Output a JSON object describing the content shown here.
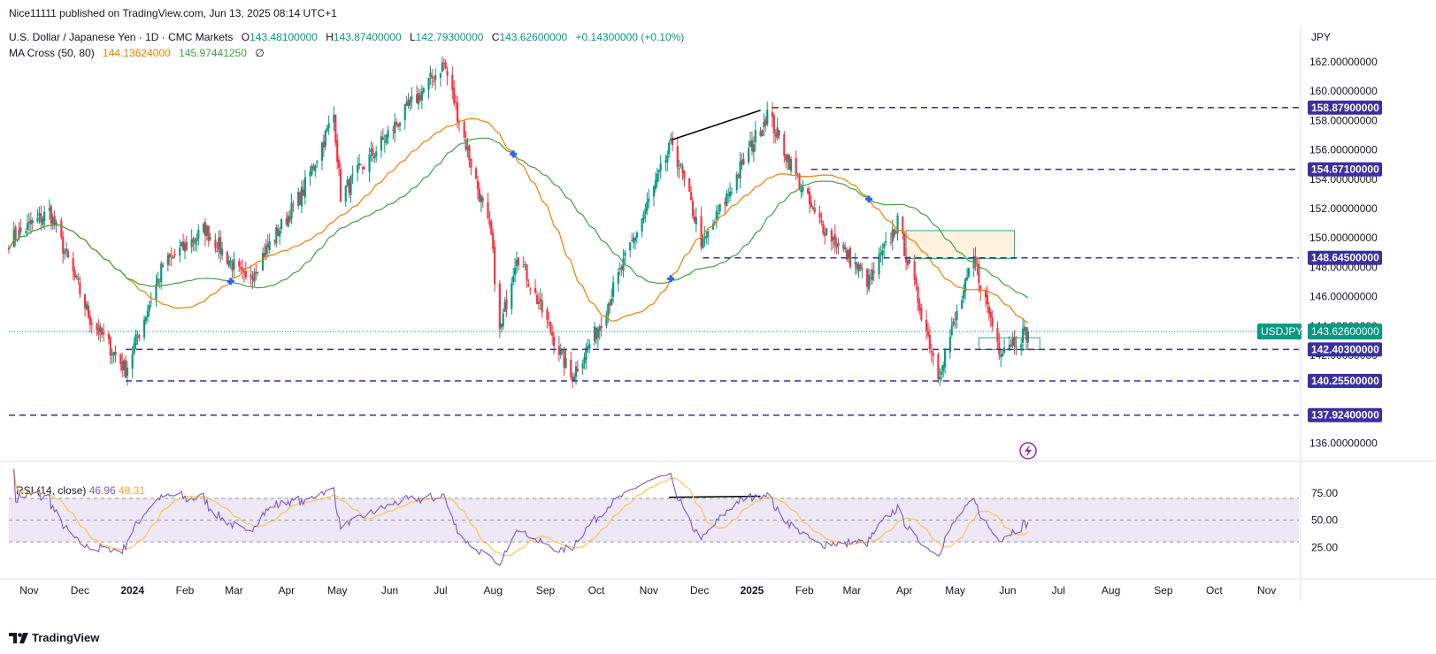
{
  "header": {
    "published_by": "Nice11111 published on TradingView.com, Jun 13, 2025 08:14 UTC+1"
  },
  "legend": {
    "symbol": "U.S. Dollar / Japanese Yen · 1D · CMC Markets",
    "open_label": "O",
    "open": "143.48100000",
    "high_label": "H",
    "high": "143.87400000",
    "low_label": "L",
    "low": "142.79300000",
    "close_label": "C",
    "close": "143.62600000",
    "change": "+0.14300000 (+0.10%)",
    "ma_name": "MA Cross (50, 80)",
    "ma50": "144.13624000",
    "ma80": "145.97441250",
    "ma_extra": "∅"
  },
  "rsi_legend": {
    "name": "RSI (14, close)",
    "value": "46.96",
    "ma": "48.31"
  },
  "axis": {
    "currency": "JPY",
    "ticks": [
      "162.00000000",
      "160.00000000",
      "158.00000000",
      "156.00000000",
      "154.00000000",
      "152.00000000",
      "150.00000000",
      "148.00000000",
      "146.00000000",
      "144.00000000",
      "142.00000000",
      "136.00000000"
    ],
    "rsi_ticks": [
      "75.00",
      "50.00",
      "25.00"
    ]
  },
  "levels": [
    "158.87900000",
    "154.67100000",
    "148.64500000",
    "142.40300000",
    "140.25500000",
    "137.92400000"
  ],
  "price_tag": {
    "symbol": "USDJPY",
    "price": "143.62600000"
  },
  "time_axis": [
    "Nov",
    "Dec",
    "2024",
    "Feb",
    "Mar",
    "Apr",
    "May",
    "Jun",
    "Jul",
    "Aug",
    "Sep",
    "Oct",
    "Nov",
    "Dec",
    "2025",
    "Feb",
    "Mar",
    "Apr",
    "May",
    "Jun",
    "Jul",
    "Aug",
    "Sep",
    "Oct",
    "Nov"
  ],
  "footer": {
    "brand": "TradingView"
  },
  "colors": {
    "up": "#089981",
    "down": "#f23645",
    "ma50": "#f57c00",
    "ma80": "#43a047",
    "level": "#3c2fa0",
    "rsi": "#7e57c2",
    "rsi_ma": "#f9c74f",
    "rsi_band": "#ede7f6",
    "cross": "#2962ff"
  },
  "chart_data": [
    {
      "type": "candlestick",
      "title": "U.S. Dollar / Japanese Yen · 1D · CMC Markets",
      "ylabel": "JPY",
      "ylim": [
        135.0,
        163.0
      ],
      "x_range": [
        "2023-10-20",
        "2025-11-20"
      ],
      "key_points": [
        {
          "date": "2023-10-20",
          "close": 149.8
        },
        {
          "date": "2023-11-13",
          "close": 151.8
        },
        {
          "date": "2023-12-07",
          "close": 144.5
        },
        {
          "date": "2023-12-28",
          "close": 141.0
        },
        {
          "date": "2024-01-19",
          "close": 148.1
        },
        {
          "date": "2024-02-13",
          "close": 150.6
        },
        {
          "date": "2024-03-08",
          "close": 147.0
        },
        {
          "date": "2024-04-10",
          "close": 153.0
        },
        {
          "date": "2024-04-29",
          "close": 158.4
        },
        {
          "date": "2024-05-03",
          "close": 152.9
        },
        {
          "date": "2024-06-03",
          "close": 157.5
        },
        {
          "date": "2024-07-03",
          "close": 161.9
        },
        {
          "date": "2024-07-31",
          "close": 150.0
        },
        {
          "date": "2024-08-05",
          "close": 143.5
        },
        {
          "date": "2024-08-15",
          "close": 149.0
        },
        {
          "date": "2024-09-16",
          "close": 140.5
        },
        {
          "date": "2024-10-01",
          "close": 143.6
        },
        {
          "date": "2024-11-15",
          "close": 156.5
        },
        {
          "date": "2024-12-03",
          "close": 149.5
        },
        {
          "date": "2025-01-10",
          "close": 158.5
        },
        {
          "date": "2025-02-07",
          "close": 151.5
        },
        {
          "date": "2025-03-11",
          "close": 147.0
        },
        {
          "date": "2025-03-28",
          "close": 151.0
        },
        {
          "date": "2025-04-21",
          "close": 140.7
        },
        {
          "date": "2025-05-12",
          "close": 148.5
        },
        {
          "date": "2025-05-27",
          "close": 142.5
        },
        {
          "date": "2025-06-13",
          "close": 143.626
        }
      ],
      "series": [
        {
          "name": "MA Cross (50, 80)",
          "kind": "ma50",
          "last": 144.13624
        },
        {
          "name": "MA Cross (50, 80)",
          "kind": "ma80",
          "last": 145.9744125
        }
      ],
      "horizontal_levels": [
        158.879,
        154.671,
        148.645,
        142.403,
        140.255,
        137.924
      ]
    },
    {
      "type": "line",
      "title": "RSI (14, close)",
      "ylim": [
        0,
        100
      ],
      "bands": [
        30,
        50,
        70
      ],
      "series": [
        {
          "name": "RSI (14, close)",
          "last": 46.96
        },
        {
          "name": "RSI (14, close)",
          "kind": "ma",
          "last": 48.31
        }
      ]
    }
  ]
}
